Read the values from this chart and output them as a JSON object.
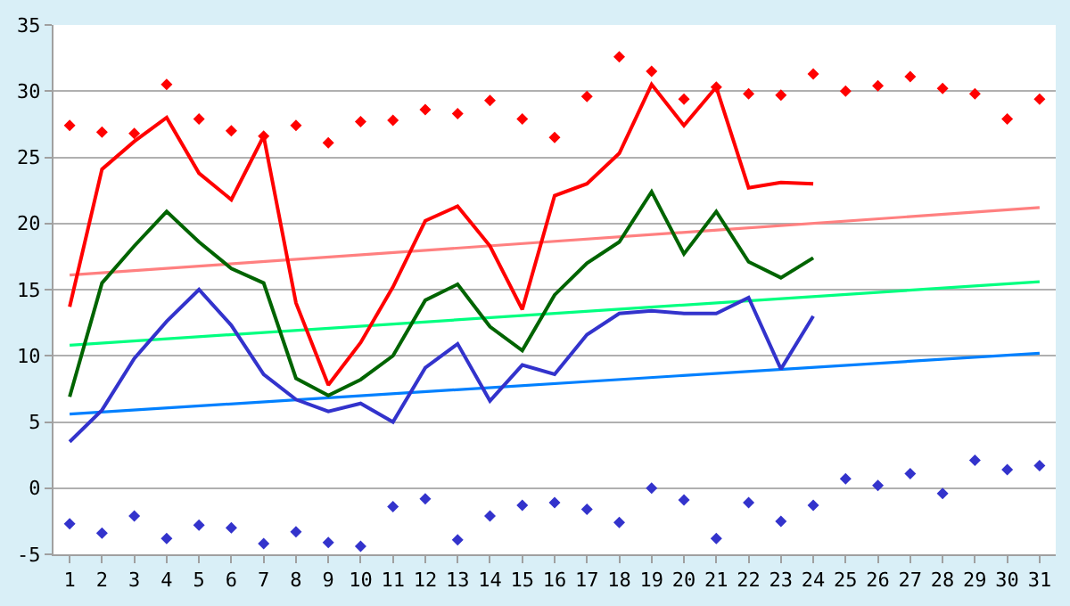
{
  "chart_data": {
    "type": "line",
    "x": [
      1,
      2,
      3,
      4,
      5,
      6,
      7,
      8,
      9,
      10,
      11,
      12,
      13,
      14,
      15,
      16,
      17,
      18,
      19,
      20,
      21,
      22,
      23,
      24,
      25,
      26,
      27,
      28,
      29,
      30,
      31
    ],
    "xlim": [
      0.5,
      31.5
    ],
    "xticks": [
      1,
      2,
      3,
      4,
      5,
      6,
      7,
      8,
      9,
      10,
      11,
      12,
      13,
      14,
      15,
      16,
      17,
      18,
      19,
      20,
      21,
      22,
      23,
      24,
      25,
      26,
      27,
      28,
      29,
      30,
      31
    ],
    "ylim": [
      -5,
      35
    ],
    "yticks": [
      -5,
      0,
      5,
      10,
      15,
      20,
      25,
      30,
      35
    ],
    "grid": "y",
    "series": [
      {
        "type": "scatter",
        "marker": "diamond",
        "color": "#ff0000",
        "values": [
          27.4,
          26.9,
          26.8,
          30.5,
          27.9,
          27.0,
          26.6,
          27.4,
          26.1,
          27.7,
          27.8,
          28.6,
          28.3,
          29.3,
          27.9,
          26.5,
          29.6,
          32.6,
          31.5,
          29.4,
          30.3,
          29.8,
          29.7,
          31.3,
          30.0,
          30.4,
          31.1,
          30.2,
          29.8,
          27.9,
          29.4
        ]
      },
      {
        "type": "scatter",
        "marker": "diamond",
        "color": "#3333cc",
        "values": [
          -2.7,
          -3.4,
          -2.1,
          -3.8,
          -2.8,
          -3.0,
          -4.2,
          -3.3,
          -4.1,
          -4.4,
          -1.4,
          -0.8,
          -3.9,
          -2.1,
          -1.3,
          -1.1,
          -1.6,
          -2.6,
          0.0,
          -0.9,
          -3.8,
          -1.1,
          -2.5,
          -1.3,
          0.7,
          0.2,
          1.1,
          -0.4,
          2.1,
          1.4,
          1.7
        ]
      },
      {
        "type": "line",
        "color": "#ff8080",
        "values": [
          16.1,
          null,
          null,
          null,
          null,
          null,
          null,
          null,
          null,
          null,
          null,
          null,
          null,
          null,
          null,
          null,
          null,
          null,
          null,
          null,
          null,
          null,
          null,
          null,
          null,
          null,
          null,
          null,
          null,
          null,
          21.2
        ]
      },
      {
        "type": "line",
        "color": "#00ff80",
        "values": [
          10.8,
          null,
          null,
          null,
          null,
          null,
          null,
          null,
          null,
          null,
          null,
          null,
          null,
          null,
          null,
          null,
          null,
          null,
          null,
          null,
          null,
          null,
          null,
          null,
          null,
          null,
          null,
          null,
          null,
          null,
          15.6
        ]
      },
      {
        "type": "line",
        "color": "#0080ff",
        "values": [
          5.6,
          null,
          null,
          null,
          null,
          null,
          null,
          null,
          null,
          null,
          null,
          null,
          null,
          null,
          null,
          null,
          null,
          null,
          null,
          null,
          null,
          null,
          null,
          null,
          null,
          null,
          null,
          null,
          null,
          null,
          10.2
        ]
      },
      {
        "marker": "none",
        "color": "#ff0000",
        "values": [
          13.7,
          24.1,
          26.2,
          28.0,
          23.8,
          21.8,
          26.6,
          14.0,
          7.8,
          11.0,
          15.2,
          20.2,
          21.3,
          18.3,
          13.5,
          22.1,
          23.0,
          25.3,
          30.5,
          27.4,
          30.3,
          22.7,
          23.1,
          23.0,
          null,
          null,
          null,
          null,
          null,
          null,
          null
        ]
      },
      {
        "marker": "none",
        "color": "#006400",
        "values": [
          6.9,
          15.5,
          18.3,
          20.9,
          18.6,
          16.6,
          15.5,
          8.3,
          7.0,
          8.2,
          10.0,
          14.2,
          15.4,
          12.2,
          10.4,
          14.6,
          17.0,
          18.6,
          22.4,
          17.7,
          20.9,
          17.1,
          15.9,
          17.4,
          null,
          null,
          null,
          null,
          null,
          null,
          null
        ]
      },
      {
        "marker": "none",
        "color": "#3333cc",
        "values": [
          3.5,
          5.9,
          9.8,
          12.6,
          15.0,
          12.3,
          8.6,
          6.7,
          5.8,
          6.4,
          5.0,
          9.1,
          10.9,
          6.6,
          9.3,
          8.6,
          11.6,
          13.2,
          13.4,
          13.2,
          13.2,
          14.4,
          9.0,
          13.0,
          null,
          null,
          null,
          null,
          null,
          null,
          null
        ]
      }
    ]
  }
}
